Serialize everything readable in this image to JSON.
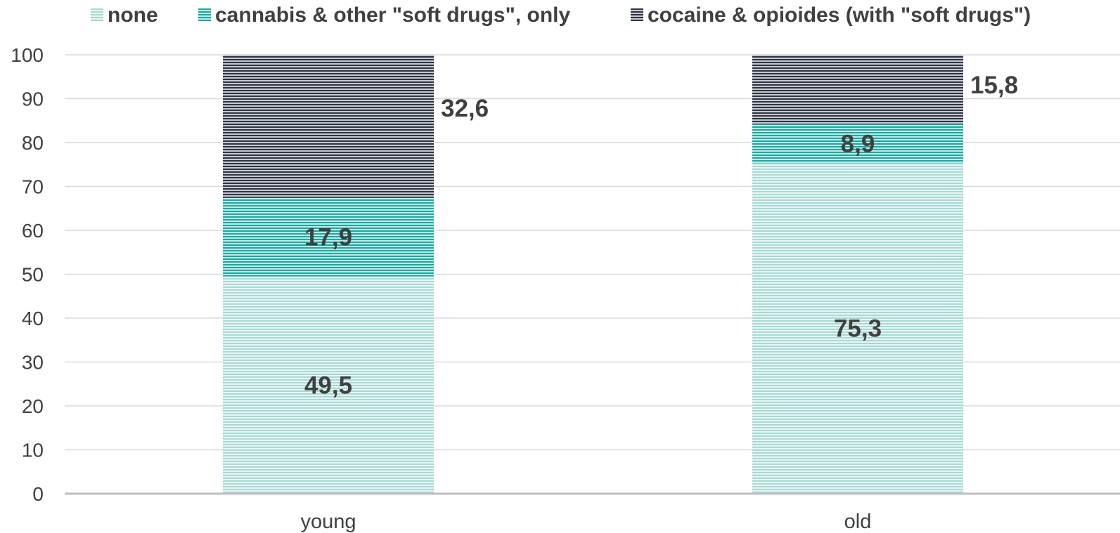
{
  "chart_data": {
    "type": "bar",
    "stacked": true,
    "categories": [
      "young",
      "old"
    ],
    "series": [
      {
        "name": "none",
        "values": [
          49.5,
          75.3
        ],
        "color": "#a8d9d4",
        "stripe": "#e8f5f4"
      },
      {
        "name": "cannabis & other \"soft drugs\", only",
        "values": [
          17.9,
          8.9
        ],
        "color": "#1aa9a2",
        "stripe": "#c3e8e5"
      },
      {
        "name": "cocaine & opioides (with \"soft drugs\")",
        "values": [
          32.6,
          15.8
        ],
        "color": "#2e3540",
        "stripe": "#c5c9cf"
      }
    ],
    "data_labels": [
      [
        "49,5",
        "75,3"
      ],
      [
        "17,9",
        "8,9"
      ],
      [
        "32,6",
        "15,8"
      ]
    ],
    "ylim": [
      0,
      100
    ],
    "yticks": [
      0,
      10,
      20,
      30,
      40,
      50,
      60,
      70,
      80,
      90,
      100
    ],
    "grid": true,
    "legend_position": "top",
    "title": "",
    "xlabel": "",
    "ylabel": ""
  }
}
